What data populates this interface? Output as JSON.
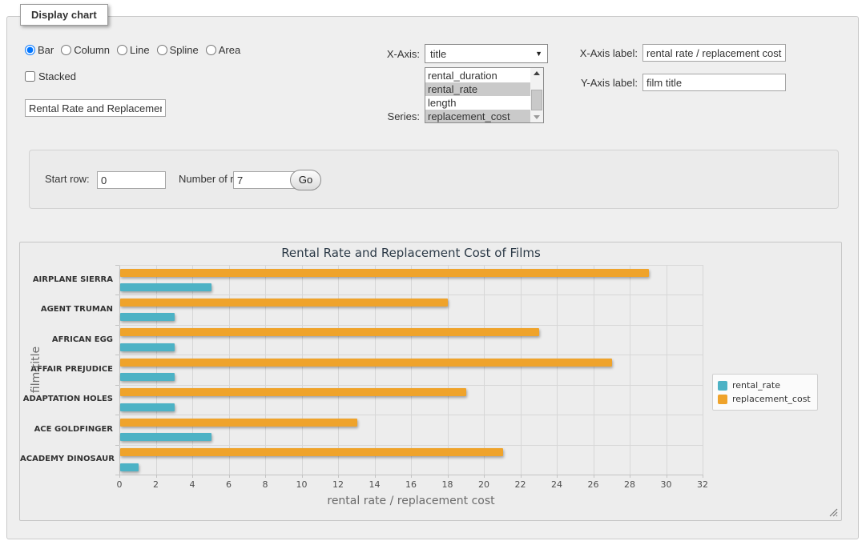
{
  "panel": {
    "legend": "Display chart"
  },
  "chart_type": {
    "options": [
      {
        "label": "Bar",
        "selected": true
      },
      {
        "label": "Column",
        "selected": false
      },
      {
        "label": "Line",
        "selected": false
      },
      {
        "label": "Spline",
        "selected": false
      },
      {
        "label": "Area",
        "selected": false
      }
    ]
  },
  "stacked": {
    "label": "Stacked",
    "checked": false
  },
  "title_input": {
    "value": "Rental Rate and Replacement Cost of Films"
  },
  "x_axis_select": {
    "label": "X-Axis:",
    "selected_value": "title"
  },
  "series_select": {
    "label": "Series:",
    "options": [
      {
        "label": "rental_duration",
        "selected": false
      },
      {
        "label": "rental_rate",
        "selected": true
      },
      {
        "label": "length",
        "selected": false
      },
      {
        "label": "replacement_cost",
        "selected": true
      }
    ]
  },
  "x_axis_label_field": {
    "label": "X-Axis label:",
    "value": "rental rate / replacement cost"
  },
  "y_axis_label_field": {
    "label": "Y-Axis label:",
    "value": "film title"
  },
  "row_controls": {
    "start_row_label": "Start row:",
    "start_row_value": "0",
    "num_rows_label": "Number of rows:",
    "num_rows_value": "7",
    "go_label": "Go"
  },
  "colors": {
    "rental_rate": "#4db2c5",
    "replacement_cost": "#efa32b"
  },
  "chart_data": {
    "type": "bar",
    "title": "Rental Rate and Replacement Cost of Films",
    "categories": [
      "AIRPLANE SIERRA",
      "AGENT TRUMAN",
      "AFRICAN EGG",
      "AFFAIR PREJUDICE",
      "ADAPTATION HOLES",
      "ACE GOLDFINGER",
      "ACADEMY DINOSAUR"
    ],
    "series": [
      {
        "name": "rental_rate",
        "color": "#4db2c5",
        "values": [
          4.99,
          2.99,
          2.99,
          2.99,
          2.99,
          4.99,
          0.99
        ]
      },
      {
        "name": "replacement_cost",
        "color": "#efa32b",
        "values": [
          28.99,
          17.99,
          22.99,
          26.99,
          18.99,
          12.99,
          20.99
        ]
      }
    ],
    "xlabel": "rental rate / replacement cost",
    "ylabel": "film title",
    "xlim": [
      0,
      32
    ],
    "x_tick_step": 2,
    "grid": true,
    "legend_position": "right"
  }
}
